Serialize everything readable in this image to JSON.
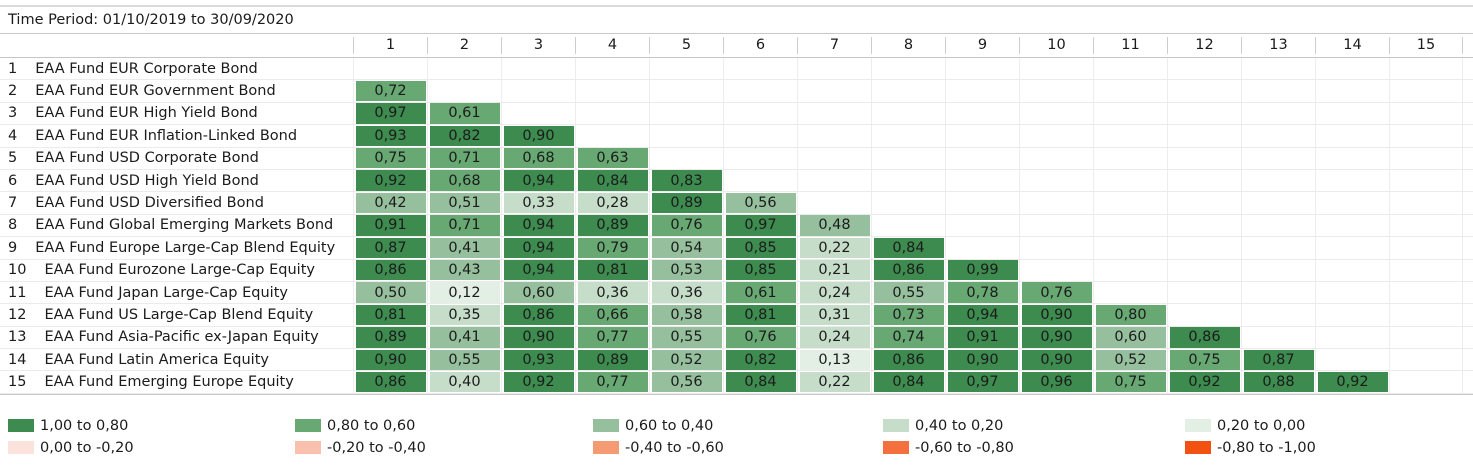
{
  "header": {
    "time_period": "Time Period: 01/10/2019 to 30/09/2020"
  },
  "chart_data": {
    "type": "heatmap",
    "subtype": "correlation-matrix-lower-triangular",
    "number_format": "comma-decimal",
    "columns": [
      "1",
      "2",
      "3",
      "4",
      "5",
      "6",
      "7",
      "8",
      "9",
      "10",
      "11",
      "12",
      "13",
      "14",
      "15"
    ],
    "rows": [
      {
        "num": "1",
        "label": "EAA Fund EUR Corporate Bond",
        "values": []
      },
      {
        "num": "2",
        "label": "EAA Fund EUR Government Bond",
        "values": [
          0.72
        ]
      },
      {
        "num": "3",
        "label": "EAA Fund EUR High Yield Bond",
        "values": [
          0.97,
          0.61
        ]
      },
      {
        "num": "4",
        "label": "EAA Fund EUR Inflation-Linked Bond",
        "values": [
          0.93,
          0.82,
          0.9
        ]
      },
      {
        "num": "5",
        "label": "EAA Fund USD Corporate Bond",
        "values": [
          0.75,
          0.71,
          0.68,
          0.63
        ]
      },
      {
        "num": "6",
        "label": "EAA Fund USD High Yield Bond",
        "values": [
          0.92,
          0.68,
          0.94,
          0.84,
          0.83
        ]
      },
      {
        "num": "7",
        "label": "EAA Fund USD Diversified Bond",
        "values": [
          0.42,
          0.51,
          0.33,
          0.28,
          0.89,
          0.56
        ]
      },
      {
        "num": "8",
        "label": "EAA Fund Global Emerging Markets Bond",
        "values": [
          0.91,
          0.71,
          0.94,
          0.89,
          0.76,
          0.97,
          0.48
        ]
      },
      {
        "num": "9",
        "label": "EAA Fund Europe Large-Cap Blend Equity",
        "values": [
          0.87,
          0.41,
          0.94,
          0.79,
          0.54,
          0.85,
          0.22,
          0.84
        ]
      },
      {
        "num": "10",
        "label": "EAA Fund Eurozone Large-Cap Equity",
        "values": [
          0.86,
          0.43,
          0.94,
          0.81,
          0.53,
          0.85,
          0.21,
          0.86,
          0.99
        ]
      },
      {
        "num": "11",
        "label": "EAA Fund Japan Large-Cap Equity",
        "values": [
          0.5,
          0.12,
          0.6,
          0.36,
          0.36,
          0.61,
          0.24,
          0.55,
          0.78,
          0.76
        ]
      },
      {
        "num": "12",
        "label": "EAA Fund US Large-Cap Blend Equity",
        "values": [
          0.81,
          0.35,
          0.86,
          0.66,
          0.58,
          0.81,
          0.31,
          0.73,
          0.94,
          0.9,
          0.8
        ]
      },
      {
        "num": "13",
        "label": "EAA Fund Asia-Pacific ex-Japan Equity",
        "values": [
          0.89,
          0.41,
          0.9,
          0.77,
          0.55,
          0.76,
          0.24,
          0.74,
          0.91,
          0.9,
          0.6,
          0.86
        ]
      },
      {
        "num": "14",
        "label": "EAA Fund Latin America Equity",
        "values": [
          0.9,
          0.55,
          0.93,
          0.89,
          0.52,
          0.82,
          0.13,
          0.86,
          0.9,
          0.9,
          0.52,
          0.75,
          0.87
        ]
      },
      {
        "num": "15",
        "label": "EAA Fund Emerging Europe Equity",
        "values": [
          0.86,
          0.4,
          0.92,
          0.77,
          0.56,
          0.84,
          0.22,
          0.84,
          0.97,
          0.96,
          0.75,
          0.92,
          0.88,
          0.92
        ]
      }
    ],
    "color_scale": {
      "bucket_size": 0.2,
      "positive_buckets": [
        "#3d8b4f",
        "#68a873",
        "#96c09d",
        "#c6ddc9",
        "#e3eee4"
      ],
      "negative_buckets": [
        "#fbe3dc",
        "#f9c0ad",
        "#f59b74",
        "#f4713f",
        "#f25112"
      ]
    }
  },
  "legend": {
    "row1": [
      {
        "label": "1,00 to 0,80",
        "color": "#3d8b4f"
      },
      {
        "label": "0,80 to 0,60",
        "color": "#68a873"
      },
      {
        "label": "0,60 to 0,40",
        "color": "#96c09d"
      },
      {
        "label": "0,40 to 0,20",
        "color": "#c6ddc9"
      },
      {
        "label": "0,20 to 0,00",
        "color": "#e3eee4"
      }
    ],
    "row2": [
      {
        "label": "0,00 to -0,20",
        "color": "#fbe3dc"
      },
      {
        "label": "-0,20 to -0,40",
        "color": "#f9c0ad"
      },
      {
        "label": "-0,40 to -0,60",
        "color": "#f59b74"
      },
      {
        "label": "-0,60 to -0,80",
        "color": "#f4713f"
      },
      {
        "label": "-0,80 to -1,00",
        "color": "#f25112"
      }
    ]
  }
}
